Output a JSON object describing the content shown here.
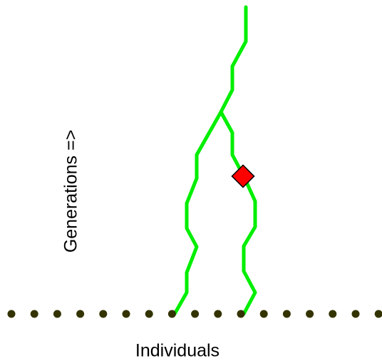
{
  "diagram": {
    "y_axis_label": "Generations =>",
    "x_axis_label": "Individuals",
    "individual_count": 17,
    "lineage_count": 2,
    "colors": {
      "lineage": "#00ee00",
      "individual": "#333300",
      "mutation_marker": "#ff0000",
      "mutation_marker_outline": "#000000",
      "text": "#000000"
    }
  }
}
